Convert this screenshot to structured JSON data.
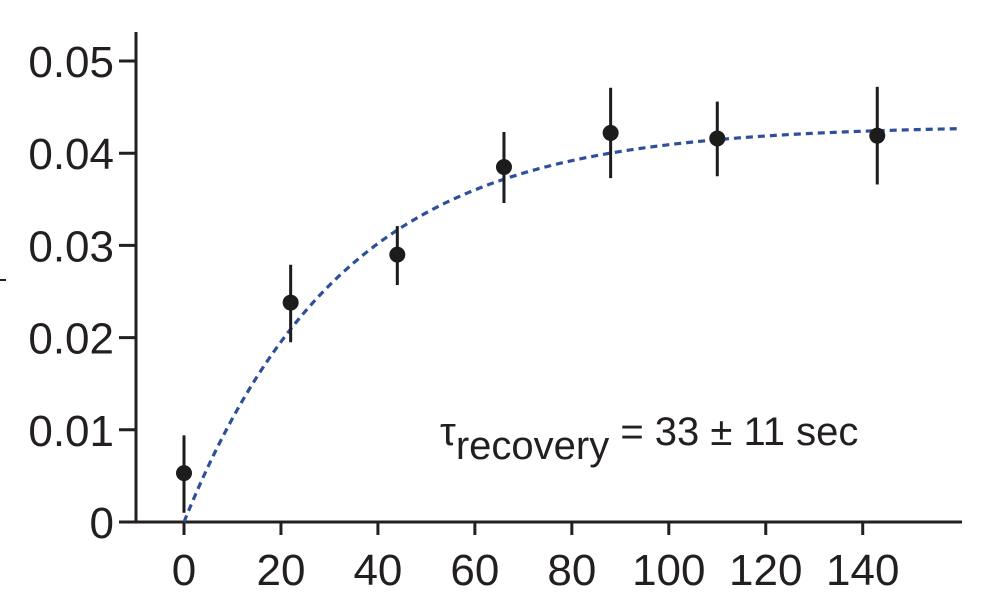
{
  "chart_data": {
    "type": "scatter",
    "title": "",
    "xlabel": "",
    "ylabel": "",
    "xlim": [
      -6,
      160
    ],
    "ylim": [
      0,
      0.053
    ],
    "x_ticks": [
      0,
      20,
      40,
      60,
      80,
      100,
      120,
      140
    ],
    "x_tick_labels": [
      "0",
      "20",
      "40",
      "60",
      "80",
      "100",
      "120",
      "140"
    ],
    "y_ticks": [
      0,
      0.01,
      0.02,
      0.03,
      0.04,
      0.05
    ],
    "y_tick_labels": [
      "0",
      "0.01",
      "0.02",
      "0.03",
      "0.04",
      "0.05"
    ],
    "grid": false,
    "series": [
      {
        "kind": "points-with-error",
        "color": "#1c1c1c",
        "x": [
          0,
          22,
          44,
          66,
          88,
          110,
          143
        ],
        "y": [
          0.0053,
          0.0238,
          0.029,
          0.0385,
          0.0422,
          0.0416,
          0.0419
        ],
        "err_low": [
          0.0043,
          0.0043,
          0.0033,
          0.0039,
          0.0049,
          0.0041,
          0.0053
        ],
        "err_high": [
          0.0041,
          0.0041,
          0.0031,
          0.0038,
          0.0049,
          0.004,
          0.0053
        ]
      },
      {
        "kind": "fit-curve",
        "color": "#2e4f9a",
        "style": "dashed",
        "model": "A*(1-exp(-x/tau))",
        "A": 0.043,
        "tau": 33
      }
    ],
    "annotation": {
      "symbol": "τ",
      "subscript": "recovery",
      "text": " = 33 ± 11 sec"
    }
  }
}
